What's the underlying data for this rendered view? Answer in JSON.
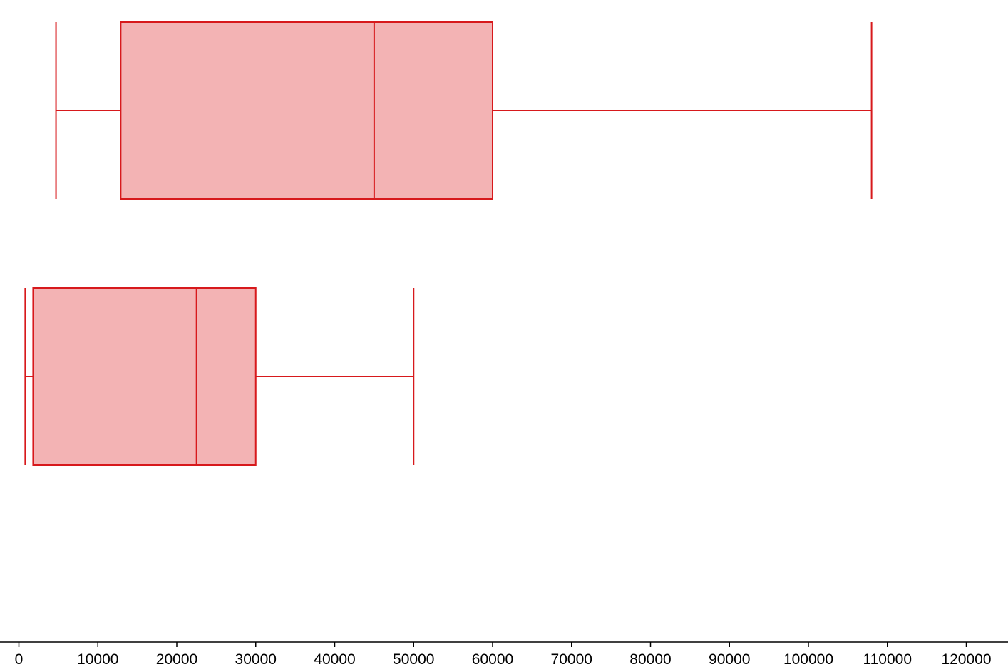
{
  "chart_data": {
    "type": "boxplot",
    "orientation": "horizontal",
    "title": "",
    "xlabel": "",
    "ylabel": "",
    "xlim": [
      0,
      125000
    ],
    "x_ticks": [
      0,
      10000,
      20000,
      30000,
      40000,
      50000,
      60000,
      70000,
      80000,
      90000,
      100000,
      110000,
      120000
    ],
    "x_tick_labels": [
      "0",
      "10000",
      "20000",
      "30000",
      "40000",
      "50000",
      "60000",
      "70000",
      "80000",
      "90000",
      "100000",
      "110000",
      "120000"
    ],
    "grid": false,
    "legend": "none",
    "colors": {
      "stroke": "#d7191c",
      "fill": "#f3b3b4",
      "axis": "#000000"
    },
    "boxes": [
      {
        "min": 4700,
        "q1": 12900,
        "median": 45000,
        "q3": 60000,
        "max": 108000
      },
      {
        "min": 800,
        "q1": 1800,
        "median": 22500,
        "q3": 30000,
        "max": 50000
      }
    ]
  }
}
